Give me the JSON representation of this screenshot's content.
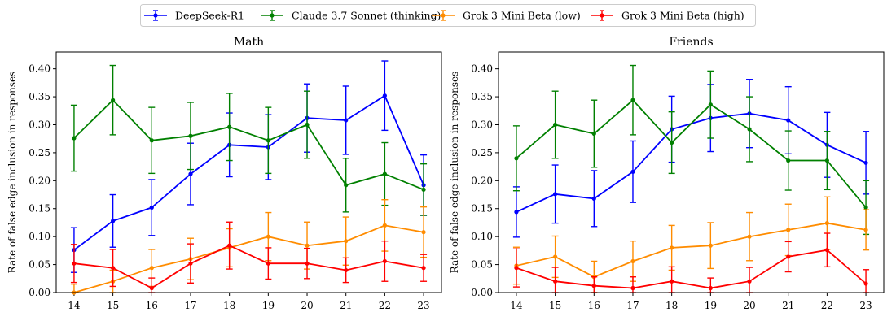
{
  "legend": {
    "placement": "top-center",
    "items": [
      {
        "name": "DeepSeek-R1",
        "color": "#0000ff"
      },
      {
        "name": "Claude 3.7 Sonnet (thinking)",
        "color": "#008000"
      },
      {
        "name": "Grok 3 Mini Beta (low)",
        "color": "#ff8c00"
      },
      {
        "name": "Grok 3 Mini Beta (high)",
        "color": "#ff0000"
      }
    ]
  },
  "chart_data": [
    {
      "type": "line",
      "title": "Math",
      "xlabel": "",
      "ylabel": "Rate of false edge inclusion in responses",
      "x": [
        14,
        15,
        16,
        17,
        18,
        19,
        20,
        21,
        22,
        23
      ],
      "xticks": [
        "14",
        "15",
        "16",
        "17",
        "18",
        "19",
        "20",
        "21",
        "22",
        "23"
      ],
      "ylim": [
        0,
        0.43
      ],
      "yticks": [
        "0.00",
        "0.05",
        "0.10",
        "0.15",
        "0.20",
        "0.25",
        "0.30",
        "0.35",
        "0.40"
      ],
      "grid": false,
      "series": [
        {
          "name": "DeepSeek-R1",
          "color": "#0000ff",
          "values": [
            0.076,
            0.128,
            0.152,
            0.212,
            0.264,
            0.26,
            0.312,
            0.308,
            0.352,
            0.192
          ],
          "errors": [
            0.04,
            0.047,
            0.05,
            0.055,
            0.057,
            0.058,
            0.061,
            0.061,
            0.062,
            0.054
          ]
        },
        {
          "name": "Claude 3.7 Sonnet (thinking)",
          "color": "#008000",
          "values": [
            0.276,
            0.344,
            0.272,
            0.28,
            0.296,
            0.272,
            0.3,
            0.192,
            0.212,
            0.184
          ],
          "errors": [
            0.059,
            0.062,
            0.059,
            0.06,
            0.06,
            0.059,
            0.06,
            0.048,
            0.056,
            0.046
          ]
        },
        {
          "name": "Grok 3 Mini Beta (low)",
          "color": "#ff8c00",
          "values": [
            0.0,
            0.02,
            0.044,
            0.06,
            0.08,
            0.1,
            0.084,
            0.092,
            0.12,
            0.108
          ],
          "errors": [
            0.015,
            0.02,
            0.033,
            0.037,
            0.034,
            0.043,
            0.042,
            0.043,
            0.046,
            0.045
          ]
        },
        {
          "name": "Grok 3 Mini Beta (high)",
          "color": "#ff0000",
          "values": [
            0.052,
            0.044,
            0.008,
            0.052,
            0.084,
            0.052,
            0.052,
            0.04,
            0.056,
            0.044
          ],
          "errors": [
            0.034,
            0.033,
            0.018,
            0.035,
            0.042,
            0.028,
            0.027,
            0.022,
            0.036,
            0.024
          ]
        }
      ]
    },
    {
      "type": "line",
      "title": "Friends",
      "xlabel": "",
      "ylabel": "Rate of false edge inclusion in responses",
      "x": [
        14,
        15,
        16,
        17,
        18,
        19,
        20,
        21,
        22,
        23
      ],
      "xticks": [
        "14",
        "15",
        "16",
        "17",
        "18",
        "19",
        "20",
        "21",
        "22",
        "23"
      ],
      "ylim": [
        0,
        0.43
      ],
      "yticks": [
        "0.00",
        "0.05",
        "0.10",
        "0.15",
        "0.20",
        "0.25",
        "0.30",
        "0.35",
        "0.40"
      ],
      "grid": false,
      "series": [
        {
          "name": "DeepSeek-R1",
          "color": "#0000ff",
          "values": [
            0.144,
            0.176,
            0.168,
            0.216,
            0.292,
            0.312,
            0.32,
            0.308,
            0.264,
            0.232
          ],
          "errors": [
            0.045,
            0.052,
            0.05,
            0.055,
            0.059,
            0.06,
            0.061,
            0.06,
            0.058,
            0.056
          ]
        },
        {
          "name": "Claude 3.7 Sonnet (thinking)",
          "color": "#008000",
          "values": [
            0.24,
            0.3,
            0.284,
            0.344,
            0.268,
            0.336,
            0.292,
            0.236,
            0.236,
            0.152
          ],
          "errors": [
            0.058,
            0.06,
            0.06,
            0.062,
            0.055,
            0.06,
            0.058,
            0.053,
            0.052,
            0.048
          ]
        },
        {
          "name": "Grok 3 Mini Beta (low)",
          "color": "#ff8c00",
          "values": [
            0.048,
            0.064,
            0.028,
            0.056,
            0.08,
            0.084,
            0.1,
            0.112,
            0.124,
            0.112
          ],
          "errors": [
            0.033,
            0.037,
            0.028,
            0.036,
            0.04,
            0.041,
            0.043,
            0.046,
            0.047,
            0.036
          ]
        },
        {
          "name": "Grok 3 Mini Beta (high)",
          "color": "#ff0000",
          "values": [
            0.044,
            0.02,
            0.012,
            0.008,
            0.02,
            0.008,
            0.02,
            0.064,
            0.076,
            0.016
          ],
          "errors": [
            0.034,
            0.025,
            0.016,
            0.02,
            0.026,
            0.018,
            0.025,
            0.027,
            0.03,
            0.025
          ]
        }
      ]
    }
  ]
}
